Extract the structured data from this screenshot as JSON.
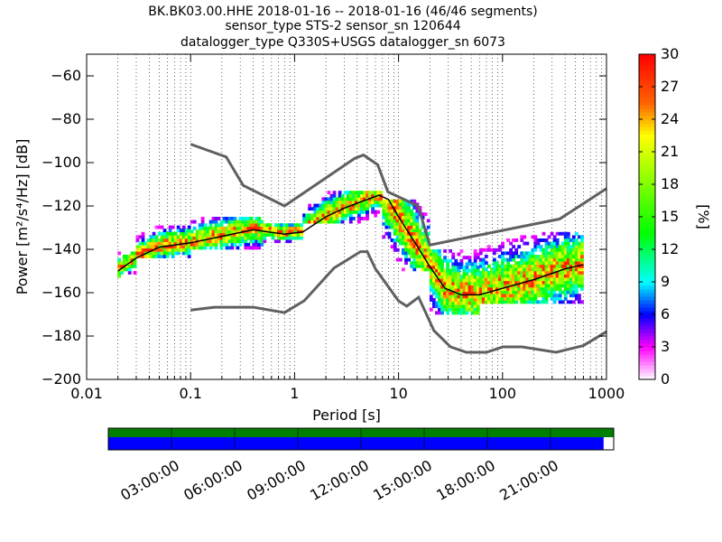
{
  "title_lines": [
    "BK.BK03.00.HHE   2018-01-16 -- 2018-01-16  (46/46 segments)",
    "sensor_type STS-2 sensor_sn 120644",
    "datalogger_type Q330S+USGS datalogger_sn 6073"
  ],
  "chart_data": {
    "type": "heatmap",
    "xlabel": "Period [s]",
    "ylabel": "Power [m²/s⁴/Hz] [dB]",
    "x_scale": "log",
    "xlim": [
      0.01,
      1000
    ],
    "ylim": [
      -200,
      -50
    ],
    "x_ticks": [
      0.01,
      0.1,
      1,
      10,
      100,
      1000
    ],
    "x_tick_labels": [
      "0.01",
      "0.1",
      "1",
      "10",
      "100",
      "1000"
    ],
    "y_ticks": [
      -200,
      -180,
      -160,
      -140,
      -120,
      -100,
      -80,
      -60
    ],
    "y_tick_labels": [
      "−200",
      "−180",
      "−160",
      "−140",
      "−120",
      "−100",
      "−80",
      "−60"
    ],
    "grid": "dotted vertical at log subdivisions",
    "colorbar": {
      "label": "[%]",
      "range": [
        0,
        30
      ],
      "ticks": [
        "0",
        "3",
        "6",
        "9",
        "12",
        "15",
        "18",
        "21",
        "24",
        "27",
        "30"
      ],
      "colormap": "pqlx"
    },
    "noise_models": [
      {
        "name": "NHNM",
        "periods": [
          0.1,
          0.22,
          0.32,
          0.8,
          3.8,
          4.6,
          6.3,
          7.9,
          15.4,
          20,
          354.8,
          1000
        ],
        "values": [
          -91.5,
          -97.4,
          -110.5,
          -120,
          -98,
          -96.5,
          -101,
          -113.5,
          -120,
          -138,
          -126,
          -112
        ]
      },
      {
        "name": "NLNM",
        "periods": [
          0.1,
          0.17,
          0.4,
          0.8,
          1.24,
          2.4,
          4.3,
          5,
          6,
          10,
          12,
          15.6,
          21.9,
          31.6,
          45,
          70,
          101,
          154,
          328,
          600,
          1000
        ],
        "values": [
          -168,
          -166.7,
          -166.7,
          -169.2,
          -163.7,
          -148.6,
          -141.1,
          -141.1,
          -149,
          -163.8,
          -166.2,
          -162.1,
          -177.5,
          -185,
          -187.5,
          -187.5,
          -185,
          -185,
          -187.5,
          -184.4,
          -178
        ]
      }
    ],
    "mode_line": {
      "periods": [
        0.02,
        0.03,
        0.05,
        0.1,
        0.2,
        0.4,
        0.8,
        1.2,
        2,
        3,
        5,
        6.5,
        8,
        10,
        14,
        20,
        28,
        40,
        60,
        100,
        200,
        400,
        600
      ],
      "values": [
        -150,
        -144,
        -139,
        -137,
        -134,
        -131,
        -133,
        -132,
        -125,
        -121,
        -117,
        -115,
        -117,
        -125,
        -136,
        -148,
        -158,
        -161,
        -161,
        -158,
        -154,
        -149,
        -147
      ]
    },
    "psd_density_bands": [
      {
        "period_range": [
          0.02,
          0.03
        ],
        "power_range": [
          -153,
          -142
        ]
      },
      {
        "period_range": [
          0.03,
          0.1
        ],
        "power_range": [
          -144,
          -130
        ]
      },
      {
        "period_range": [
          0.1,
          0.5
        ],
        "power_range": [
          -140,
          -125
        ]
      },
      {
        "period_range": [
          0.5,
          1.2
        ],
        "power_range": [
          -137,
          -128
        ]
      },
      {
        "period_range": [
          1.2,
          7
        ],
        "power_range": [
          -128,
          -113
        ]
      },
      {
        "period_range": [
          7,
          20
        ],
        "power_range": [
          -150,
          -117
        ]
      },
      {
        "period_range": [
          20,
          60
        ],
        "power_range": [
          -170,
          -140
        ]
      },
      {
        "period_range": [
          60,
          600
        ],
        "power_range": [
          -165,
          -133
        ]
      }
    ]
  },
  "timeline": {
    "tick_labels": [
      "03:00:00",
      "06:00:00",
      "09:00:00",
      "12:00:00",
      "15:00:00",
      "18:00:00",
      "21:00:00"
    ],
    "coverage_fraction": 0.98,
    "data_color": "#0000ff",
    "gap_color": "#008000"
  },
  "colors": {
    "noise_model": "#606060",
    "mode_line": "#000000"
  }
}
